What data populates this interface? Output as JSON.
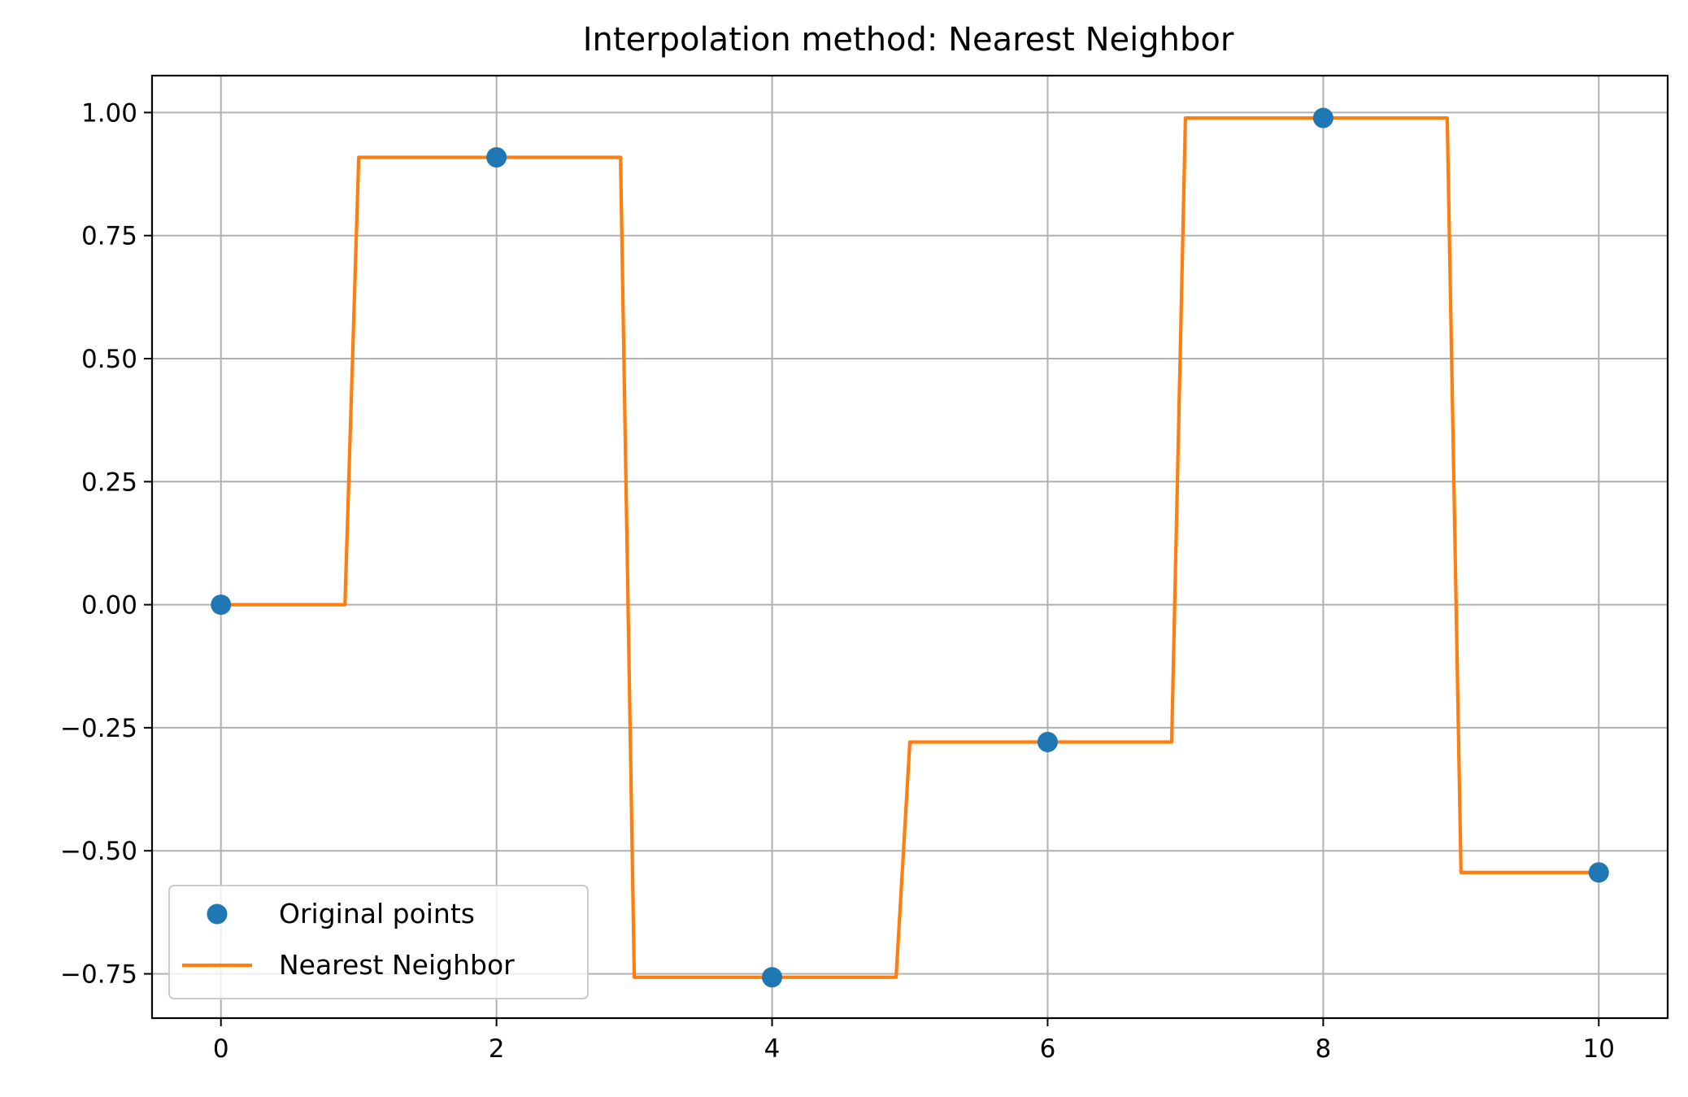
{
  "chart_data": {
    "type": "line",
    "title": "Interpolation method: Nearest Neighbor",
    "xlabel": "",
    "ylabel": "",
    "xlim": [
      -0.5,
      10.5
    ],
    "ylim": [
      -0.84,
      1.075
    ],
    "xticks": [
      0,
      2,
      4,
      6,
      8,
      10
    ],
    "xtick_labels": [
      "0",
      "2",
      "4",
      "6",
      "8",
      "10"
    ],
    "yticks": [
      1.0,
      0.75,
      0.5,
      0.25,
      0.0,
      -0.25,
      -0.5,
      -0.75
    ],
    "ytick_labels": [
      "1.00",
      "0.75",
      "0.50",
      "0.25",
      "0.00",
      "−0.25",
      "−0.50",
      "−0.75"
    ],
    "grid": true,
    "legend_position": "lower-left",
    "series": [
      {
        "name": "Original points",
        "kind": "scatter",
        "color": "#1f77b4",
        "x": [
          0,
          2,
          4,
          6,
          8,
          10
        ],
        "y": [
          0.0,
          0.909,
          -0.757,
          -0.279,
          0.989,
          -0.544
        ]
      },
      {
        "name": "Nearest Neighbor",
        "kind": "line",
        "color": "#ff7f0e",
        "x": [
          0,
          0.9,
          1.0,
          2.9,
          3.0,
          4.9,
          5.0,
          6.9,
          7.0,
          8.9,
          9.0,
          10
        ],
        "y": [
          0.0,
          0.0,
          0.909,
          0.909,
          -0.757,
          -0.757,
          -0.279,
          -0.279,
          0.989,
          0.989,
          -0.544,
          -0.544
        ]
      }
    ]
  }
}
